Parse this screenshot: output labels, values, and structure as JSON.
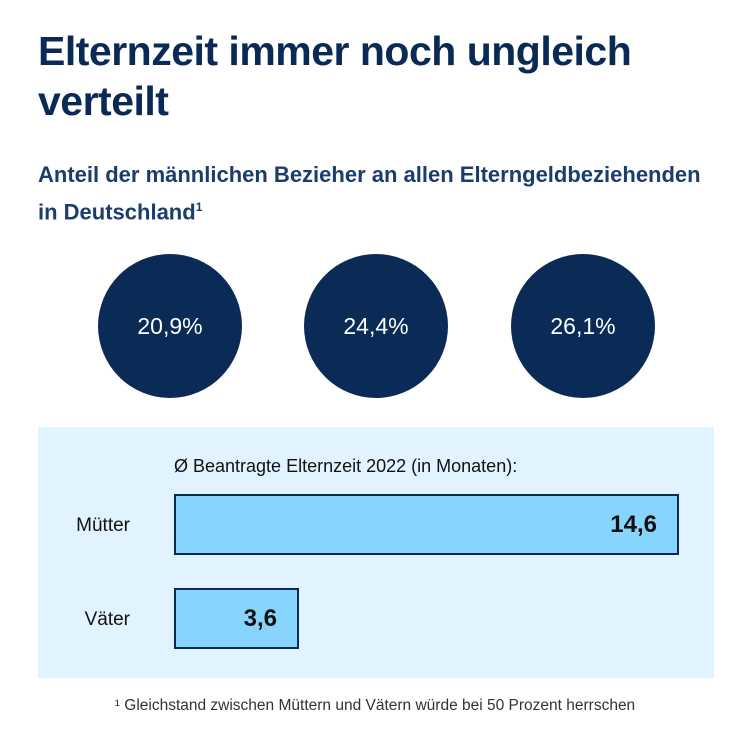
{
  "title": "Elternzeit immer noch ungleich verteilt",
  "subtitle": "Anteil der männlichen Bezieher an allen Elterngeldbeziehenden in Deutschland",
  "subtitle_sup": "1",
  "colors": {
    "circle": "#0b2b57",
    "bar_fill": "#87d4fc",
    "bar_border": "#0b2b57",
    "panel": "#e1f3fe"
  },
  "circles": [
    {
      "label": "20,9%",
      "value": 20.9
    },
    {
      "label": "24,4%",
      "value": 24.4
    },
    {
      "label": "26,1%",
      "value": 26.1
    }
  ],
  "chart_data": {
    "type": "bar",
    "orientation": "horizontal",
    "title": "Ø Beantragte Elternzeit 2022 (in Monaten):",
    "categories": [
      "Mütter",
      "Väter"
    ],
    "values": [
      14.6,
      3.6
    ],
    "value_labels": [
      "14,6",
      "3,6"
    ],
    "grid": false
  },
  "footnote": "¹ Gleichstand zwischen Müttern und Vätern würde bei 50 Prozent herrschen"
}
